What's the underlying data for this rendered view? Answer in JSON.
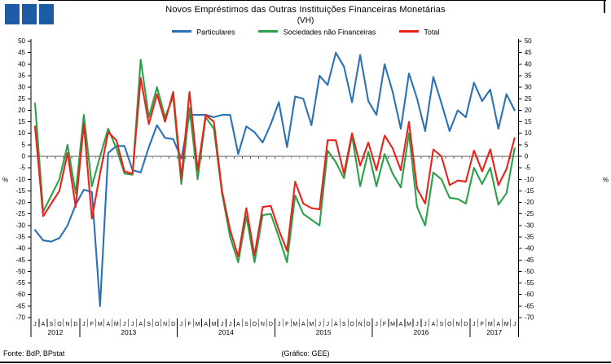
{
  "logo": {
    "color": "#1d5ba4"
  },
  "title": {
    "text": "Novos Empréstimos das Outras Instituições Financeiras Monetárias",
    "subtitle": "(VH)"
  },
  "legend": {
    "items": [
      {
        "label": "Particulares",
        "color": "#2a72b5"
      },
      {
        "label": "Sociedades não Financeiras",
        "color": "#2ca04a"
      },
      {
        "label": "Total",
        "color": "#e8231a"
      }
    ]
  },
  "footer": {
    "source": "Fonte: BdP, BPstat",
    "credit": "(Gráfico: GEE)"
  },
  "chart_data": {
    "type": "line",
    "title": "Novos Empréstimos das Outras Instituições Financeiras Monetárias (VH)",
    "ylabel": "%",
    "ylim": [
      -70,
      50
    ],
    "y_step": 5,
    "grid": false,
    "legend_position": "top",
    "x_labels": [
      "J",
      "A",
      "S",
      "O",
      "N",
      "D",
      "J",
      "F",
      "M",
      "A",
      "M",
      "J",
      "J",
      "A",
      "S",
      "O",
      "N",
      "D",
      "J",
      "F",
      "M",
      "A",
      "M",
      "J",
      "J",
      "A",
      "S",
      "O",
      "N",
      "D",
      "J",
      "F",
      "M",
      "A",
      "M",
      "J",
      "J",
      "A",
      "S",
      "O",
      "N",
      "D",
      "J",
      "F",
      "M",
      "A",
      "M",
      "J",
      "J",
      "A",
      "S",
      "O",
      "N",
      "D",
      "J",
      "F",
      "M",
      "A",
      "M",
      "J"
    ],
    "years": [
      {
        "label": "2012",
        "from": 0,
        "to": 5
      },
      {
        "label": "2013",
        "from": 6,
        "to": 17
      },
      {
        "label": "2014",
        "from": 18,
        "to": 29
      },
      {
        "label": "2015",
        "from": 30,
        "to": 41
      },
      {
        "label": "2016",
        "from": 42,
        "to": 53
      },
      {
        "label": "2017",
        "from": 54,
        "to": 59
      }
    ],
    "series": [
      {
        "name": "Particulares",
        "color": "#2a72b5",
        "values": [
          -32,
          -36.5,
          -37,
          -35.5,
          -30,
          -21,
          -14.5,
          -15.5,
          -65,
          1.5,
          4.5,
          4.5,
          -6,
          -7,
          4,
          13.5,
          8,
          7.5,
          -1,
          18,
          18,
          18,
          17,
          18,
          18,
          1,
          13,
          10.5,
          6,
          14,
          23.5,
          4,
          26,
          25,
          13.5,
          35,
          31,
          45,
          39,
          23.5,
          44,
          24,
          18,
          40,
          28,
          12,
          36,
          25,
          11,
          34.5,
          23,
          11,
          20,
          17,
          32,
          24,
          29,
          12,
          27,
          20
        ]
      },
      {
        "name": "Sociedades não Financeiras",
        "color": "#2ca04a",
        "values": [
          23,
          -24,
          -17,
          -10,
          5,
          -16,
          18,
          -13,
          0,
          12,
          3.5,
          -7.5,
          -8,
          42,
          17,
          30,
          17,
          26,
          -12,
          21,
          -10,
          17,
          12,
          -16,
          -35,
          -46,
          -26,
          -46,
          -25.5,
          -25,
          -35,
          -46,
          -17,
          -25,
          -27.5,
          -30,
          2.5,
          -2.5,
          -9.5,
          9,
          -13,
          2,
          -13,
          1,
          -7.5,
          -13.5,
          10,
          -22,
          -30,
          -7,
          -10,
          -18,
          -18.5,
          -20.5,
          -5,
          -12,
          -5,
          -21,
          -16,
          3.5
        ]
      },
      {
        "name": "Total",
        "color": "#e8231a",
        "values": [
          13,
          -26,
          -20.5,
          -15,
          1.5,
          -22,
          14,
          -27,
          -7.5,
          10.5,
          7,
          -6.5,
          -7.5,
          34,
          14,
          27,
          15,
          28,
          -9.5,
          28,
          -6,
          18,
          15,
          -15,
          -32,
          -43.5,
          -22.5,
          -43,
          -22,
          -21.5,
          -32,
          -41,
          -11,
          -20.5,
          -22.5,
          -23,
          7,
          7,
          -7.5,
          10,
          -4,
          6,
          -6,
          9,
          3.5,
          -6,
          15,
          -14,
          -20.5,
          3,
          0,
          -12.5,
          -10.5,
          -11,
          2.5,
          -6.5,
          3,
          -12.5,
          -5.5,
          8
        ]
      }
    ]
  }
}
